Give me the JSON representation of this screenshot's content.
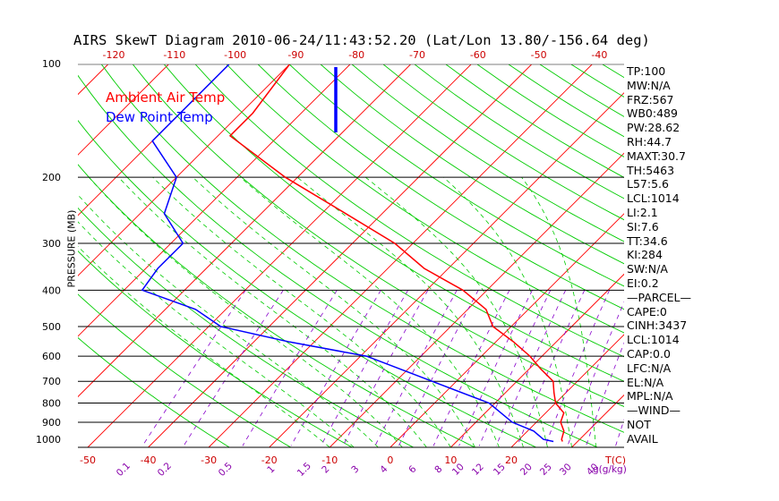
{
  "title": "AIRS SkewT Diagram 2010-06-24/11:43:52.20 (Lat/Lon 13.80/-156.64 deg)",
  "legend": {
    "air": "Ambient Air Temp",
    "dew": "Dew Point Temp"
  },
  "colors": {
    "air": "#ff0000",
    "dew": "#0000ff",
    "isotherm": "#ff0000",
    "dry_adiabat": "#00cc00",
    "moist_adiabat": "#00cc00",
    "mixing_ratio": "#8800cc",
    "isobar": "#000000",
    "temp_tick": "#cc0000",
    "mixing_tick": "#8800aa"
  },
  "side_panel": [
    "TP:100",
    "MW:N/A",
    "FRZ:567",
    "WB0:489",
    "PW:28.62",
    "RH:44.7",
    "MAXT:30.7",
    "TH:5463",
    "L57:5.6",
    "LCL:1014",
    "LI:2.1",
    "SI:7.6",
    "TT:34.6",
    "KI:284",
    "SW:N/A",
    "EI:0.2",
    "—PARCEL—",
    "CAPE:0",
    "CINH:3437",
    "LCL:1014",
    "CAP:0.0",
    "LFC:N/A",
    "EL:N/A",
    "MPL:N/A",
    "—WIND—",
    "NOT",
    "AVAIL"
  ],
  "chart_data": {
    "type": "skewt",
    "title": "AIRS SkewT Diagram 2010-06-24/11:43:52.20 (Lat/Lon 13.80/-156.64 deg)",
    "ylabel": "PRESSURE (MB)",
    "pressure_ticks": [
      100,
      200,
      300,
      400,
      500,
      600,
      700,
      800,
      900,
      1000
    ],
    "isobar_lines": [
      200,
      300,
      400,
      500,
      600,
      700,
      800,
      900
    ],
    "pressure_range": [
      100,
      1050
    ],
    "top_temp_ticks": [
      -120,
      -110,
      -100,
      -90,
      -80,
      -70,
      -60,
      -50,
      -40
    ],
    "bottom_temp_ticks": [
      -50,
      -40,
      -30,
      -20,
      -10,
      0,
      10,
      20
    ],
    "bottom_temp_unit": "T(C)",
    "mixing_ratio_ticks": [
      "0.1",
      "0.2",
      "0.5",
      "1",
      "1.5",
      "2",
      "3",
      "4",
      "6",
      "8",
      "10",
      "12",
      "15",
      "20",
      "25",
      "30",
      "40"
    ],
    "mixing_ratio_unit": "g(g/kg)",
    "series": [
      {
        "name": "Ambient Air Temp",
        "points": [
          [
            100,
            -80
          ],
          [
            135,
            -78
          ],
          [
            155,
            -78
          ],
          [
            200,
            -62
          ],
          [
            250,
            -46
          ],
          [
            300,
            -33
          ],
          [
            350,
            -24
          ],
          [
            400,
            -14
          ],
          [
            450,
            -7
          ],
          [
            500,
            -3
          ],
          [
            550,
            3
          ],
          [
            600,
            8
          ],
          [
            650,
            12
          ],
          [
            700,
            16
          ],
          [
            750,
            18
          ],
          [
            800,
            20
          ],
          [
            850,
            23
          ],
          [
            900,
            24
          ],
          [
            950,
            26
          ],
          [
            1000,
            27
          ],
          [
            1013,
            27.5
          ]
        ]
      },
      {
        "name": "Dew Point Temp",
        "points": [
          [
            100,
            -90
          ],
          [
            160,
            -90
          ],
          [
            200,
            -80
          ],
          [
            250,
            -76
          ],
          [
            300,
            -68
          ],
          [
            350,
            -68
          ],
          [
            400,
            -67
          ],
          [
            450,
            -55
          ],
          [
            500,
            -48
          ],
          [
            550,
            -34
          ],
          [
            600,
            -19
          ],
          [
            700,
            -4
          ],
          [
            800,
            9
          ],
          [
            900,
            16
          ],
          [
            950,
            21
          ],
          [
            1000,
            24
          ],
          [
            1013,
            26
          ]
        ]
      }
    ]
  }
}
